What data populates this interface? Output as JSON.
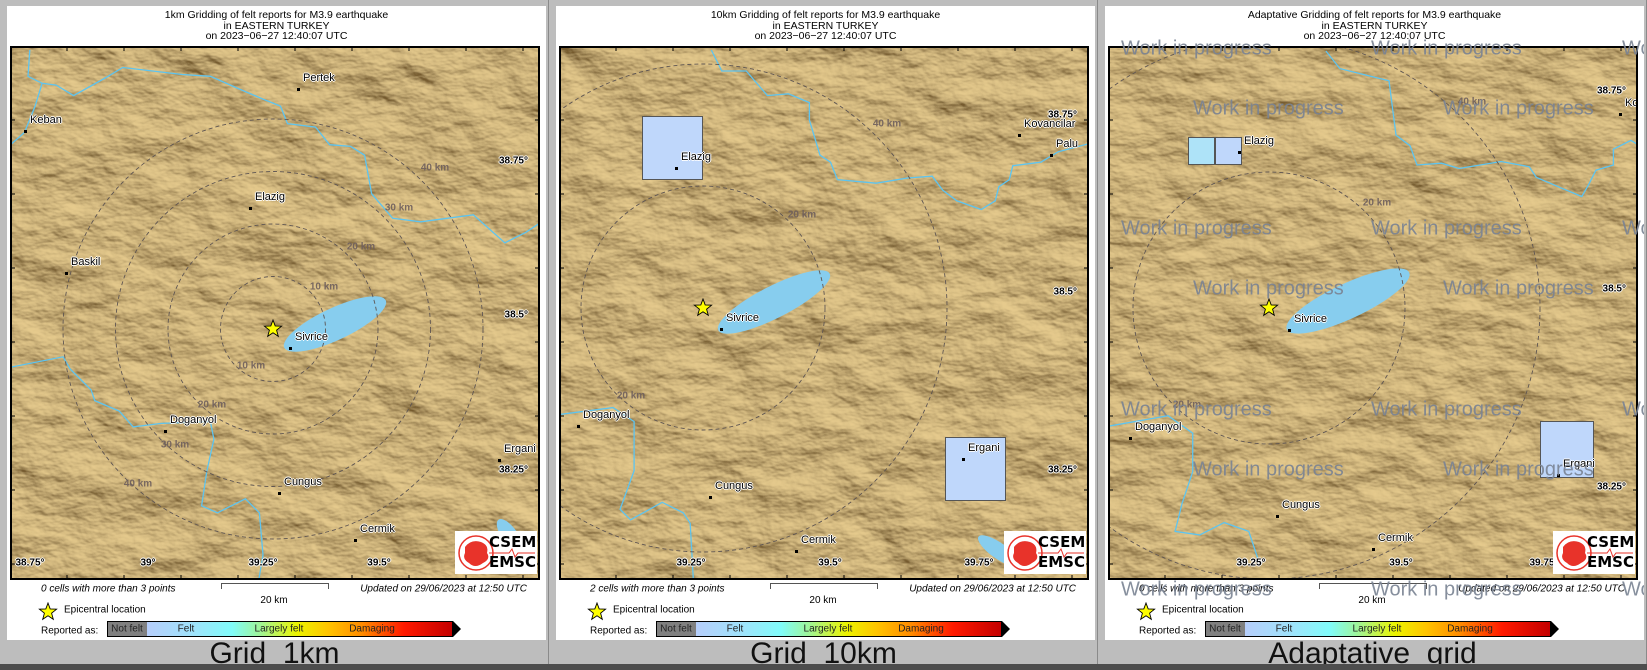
{
  "colors": {
    "terrain": "#c4a86c",
    "water": "#87cdee",
    "river": "#5ec4ef",
    "epicenter": "#ffff00",
    "cell_felt": "#bfd7fb",
    "cell_felt_cyan": "#aee3f8",
    "watermark": "#7a8393",
    "logo_red": "#e8332a"
  },
  "icons": {
    "epicenter": "star-icon",
    "logo": "csem-emsc-logo"
  },
  "logo": {
    "line1": "CSEM",
    "line2": "EMSC"
  },
  "legend": {
    "epicenter_label": "Epicentral location",
    "reported_as": "Reported as:",
    "scale": [
      "Not felt",
      "Felt",
      "Largely felt",
      "Damaging"
    ]
  },
  "panels": [
    {
      "name": "Grid_1km",
      "title": [
        "1km Gridding of felt reports for M3.9 earthquake",
        "in EASTERN TURKEY",
        "on  2023−06−27 12:40:07 UTC"
      ],
      "cells_note": "0 cells with more than 3 points",
      "updated": "Updated on 29/06/2023 at 12:50 UTC",
      "scale_bar": "20 km",
      "cities": [
        "Pertek",
        "Keban",
        "Elazig",
        "Baskil",
        "Sivrice",
        "Doganyol",
        "Ergani",
        "Cungus",
        "Cermik"
      ],
      "distance_labels": [
        "10 km",
        "10 km",
        "20 km",
        "20 km",
        "30 km",
        "30 km",
        "40 km",
        "40 km"
      ],
      "lat_labels": [
        "38.75°",
        "38.5°",
        "38.25°"
      ],
      "lon_labels": [
        "38.75°",
        "39°",
        "39.25°",
        "39.5°"
      ],
      "grid_cells": [],
      "watermark": ""
    },
    {
      "name": "Grid_10km",
      "title": [
        "10km Gridding of felt reports for M3.9 earthquake",
        "in EASTERN TURKEY",
        "on  2023−06−27 12:40:07 UTC"
      ],
      "cells_note": "2 cells with more than 3 points",
      "updated": "Updated on 29/06/2023 at 12:50 UTC",
      "scale_bar": "20 km",
      "cities": [
        "Elazig",
        "Sivrice",
        "Kovancilar",
        "Palu",
        "Doganyol",
        "Cungus",
        "Cermik",
        "Ergani"
      ],
      "distance_labels": [
        "20 km",
        "20 km",
        "40 km"
      ],
      "lat_labels": [
        "38.75°",
        "38.5°",
        "38.25°"
      ],
      "lon_labels": [
        "39.25°",
        "39.5°",
        "39.75°"
      ],
      "grid_cells": [
        {
          "place": "Elazig",
          "level": "Felt",
          "color": "#bfd7fb"
        },
        {
          "place": "Ergani",
          "level": "Felt",
          "color": "#bfd7fb"
        }
      ],
      "watermark": ""
    },
    {
      "name": "Adaptative_grid",
      "title": [
        "Adaptative Gridding of felt reports for M3.9 earthquake",
        "in EASTERN TURKEY",
        "on  2023−06−27 12:40:07 UTC"
      ],
      "cells_note": "0 cells with more than 3 points",
      "updated": "Updated on 29/06/2023 at 12:50 UTC",
      "scale_bar": "20 km",
      "cities": [
        "Elazig",
        "Sivrice",
        "Kovancilar",
        "Doganyol",
        "Cungus",
        "Cermik",
        "Ergani"
      ],
      "distance_labels": [
        "20 km",
        "20 km",
        "40 km"
      ],
      "lat_labels": [
        "38.75°",
        "38.5°",
        "38.25°"
      ],
      "lon_labels": [
        "39.25°",
        "39.5°",
        "39.75°"
      ],
      "grid_cells": [
        {
          "place": "Elazig",
          "level": "Felt",
          "color": "#aee3f8"
        },
        {
          "place": "Elazig",
          "level": "Felt",
          "color": "#bfd7fb"
        },
        {
          "place": "Ergani",
          "level": "Felt",
          "color": "#bfd7fb"
        }
      ],
      "watermark": "Work in progress"
    }
  ]
}
